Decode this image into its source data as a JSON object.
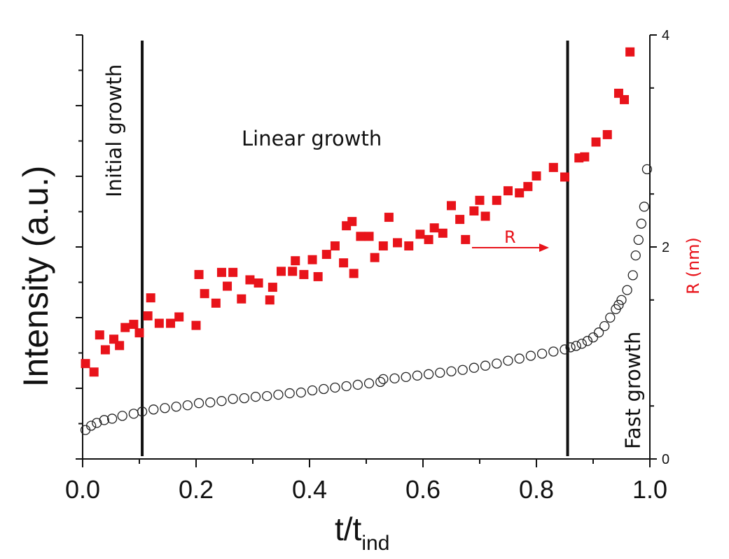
{
  "chart_data": {
    "type": "scatter",
    "xlabel_main": "t/t",
    "xlabel_sub": "ind",
    "ylabel": "Intensity (a.u.)",
    "y2label": "R (nm)",
    "xlim": [
      0.0,
      1.0
    ],
    "ylim_intensity": [
      0,
      6
    ],
    "y2lim": [
      0,
      4
    ],
    "x_ticks": [
      "0.0",
      "0.2",
      "0.4",
      "0.6",
      "0.8",
      "1.0"
    ],
    "y2_ticks": [
      "0",
      "2",
      "4"
    ],
    "vertical_lines": [
      0.105,
      0.855
    ],
    "annotations": {
      "initial": "Initial growth",
      "linear": "Linear growth",
      "fast": "Fast growth",
      "r_arrow": "R"
    },
    "series": [
      {
        "name": "R",
        "axis": "right",
        "marker": "filled-square",
        "color": "#e8131a",
        "x": [
          0.005,
          0.02,
          0.03,
          0.04,
          0.055,
          0.065,
          0.075,
          0.09,
          0.1,
          0.115,
          0.12,
          0.135,
          0.155,
          0.17,
          0.2,
          0.205,
          0.215,
          0.235,
          0.245,
          0.255,
          0.265,
          0.28,
          0.295,
          0.31,
          0.33,
          0.335,
          0.35,
          0.37,
          0.375,
          0.39,
          0.405,
          0.415,
          0.43,
          0.445,
          0.46,
          0.465,
          0.475,
          0.478,
          0.49,
          0.505,
          0.515,
          0.53,
          0.54,
          0.555,
          0.575,
          0.595,
          0.61,
          0.62,
          0.635,
          0.65,
          0.665,
          0.675,
          0.69,
          0.7,
          0.71,
          0.73,
          0.75,
          0.77,
          0.785,
          0.8,
          0.83,
          0.85,
          0.875,
          0.885,
          0.905,
          0.925,
          0.945,
          0.955,
          0.965
        ],
        "y": [
          0.9,
          0.82,
          1.17,
          1.03,
          1.13,
          1.07,
          1.24,
          1.27,
          1.19,
          1.35,
          1.52,
          1.28,
          1.28,
          1.34,
          1.26,
          1.74,
          1.56,
          1.47,
          1.76,
          1.63,
          1.76,
          1.51,
          1.69,
          1.66,
          1.5,
          1.62,
          1.77,
          1.77,
          1.87,
          1.74,
          1.88,
          1.72,
          1.93,
          2.01,
          1.85,
          2.2,
          2.24,
          1.75,
          2.1,
          2.1,
          1.9,
          2.01,
          2.28,
          2.04,
          2.01,
          2.12,
          2.07,
          2.18,
          2.13,
          2.39,
          2.26,
          2.07,
          2.34,
          2.44,
          2.29,
          2.44,
          2.53,
          2.51,
          2.57,
          2.67,
          2.75,
          2.66,
          2.84,
          2.85,
          2.99,
          3.06,
          3.45,
          3.39,
          3.84
        ]
      },
      {
        "name": "Intensity",
        "axis": "left",
        "marker": "open-circle",
        "color": "#222222",
        "x": [
          0.005,
          0.015,
          0.025,
          0.038,
          0.052,
          0.07,
          0.09,
          0.105,
          0.125,
          0.145,
          0.165,
          0.185,
          0.205,
          0.225,
          0.245,
          0.265,
          0.285,
          0.305,
          0.325,
          0.345,
          0.365,
          0.385,
          0.405,
          0.425,
          0.445,
          0.465,
          0.485,
          0.505,
          0.525,
          0.53,
          0.55,
          0.57,
          0.59,
          0.61,
          0.63,
          0.65,
          0.67,
          0.69,
          0.71,
          0.73,
          0.75,
          0.77,
          0.79,
          0.81,
          0.83,
          0.85,
          0.86,
          0.87,
          0.88,
          0.89,
          0.9,
          0.91,
          0.92,
          0.93,
          0.94,
          0.945,
          0.95,
          0.96,
          0.97,
          0.975,
          0.98,
          0.985,
          0.99,
          0.995
        ],
        "y": [
          0.41,
          0.47,
          0.51,
          0.55,
          0.57,
          0.61,
          0.64,
          0.67,
          0.7,
          0.72,
          0.74,
          0.76,
          0.79,
          0.8,
          0.82,
          0.85,
          0.86,
          0.88,
          0.89,
          0.91,
          0.93,
          0.94,
          0.97,
          0.99,
          1.01,
          1.03,
          1.05,
          1.07,
          1.09,
          1.13,
          1.14,
          1.16,
          1.18,
          1.2,
          1.22,
          1.24,
          1.26,
          1.29,
          1.32,
          1.35,
          1.39,
          1.42,
          1.46,
          1.49,
          1.52,
          1.55,
          1.58,
          1.6,
          1.63,
          1.67,
          1.72,
          1.79,
          1.88,
          2.0,
          2.12,
          2.18,
          2.25,
          2.39,
          2.6,
          2.88,
          3.1,
          3.33,
          3.57,
          4.1
        ]
      }
    ]
  }
}
